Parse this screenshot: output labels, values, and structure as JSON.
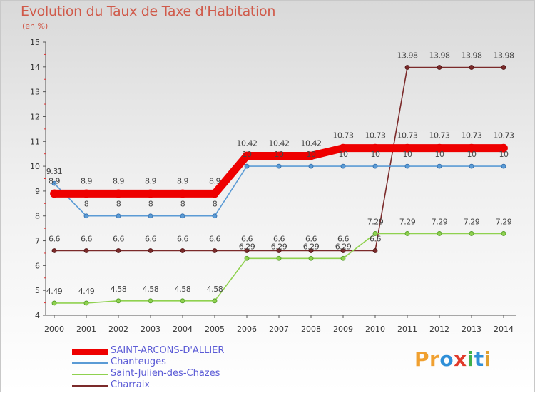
{
  "title": "Evolution du Taux de Taxe d'Habitation",
  "subtitle": "(en %)",
  "logo": {
    "text": "Proxiti",
    "letters": [
      "P",
      "r",
      "o",
      "x",
      "i",
      "t",
      "i"
    ],
    "colors": [
      "#f0a030",
      "#f0a030",
      "#2f8fd8",
      "#e03a2a",
      "#3fb04a",
      "#2f8fd8",
      "#e0a030"
    ]
  },
  "chart_data": {
    "type": "line",
    "title": "Evolution du Taux de Taxe d'Habitation",
    "ylabel": "(en %)",
    "xlabel": "",
    "categories": [
      "2000",
      "2001",
      "2002",
      "2003",
      "2004",
      "2005",
      "2006",
      "2007",
      "2008",
      "2009",
      "2010",
      "2011",
      "2012",
      "2013",
      "2014"
    ],
    "ylim": [
      4,
      15
    ],
    "yticks": [
      4,
      5,
      6,
      7,
      8,
      9,
      10,
      11,
      12,
      13,
      14,
      15
    ],
    "series": [
      {
        "name": "SAINT-ARCONS-D'ALLIER",
        "color": "#ee0000",
        "values": [
          8.9,
          8.9,
          8.9,
          8.9,
          8.9,
          8.9,
          10.42,
          10.42,
          10.42,
          10.73,
          10.73,
          10.73,
          10.73,
          10.73,
          10.73
        ],
        "labels": [
          "8.9",
          "8.9",
          "8.9",
          "8.9",
          "8.9",
          "8.9",
          "10.42",
          "10.42",
          "10.42",
          "10.73",
          "10.73",
          "10.73",
          "10.73",
          "10.73",
          "10.73"
        ]
      },
      {
        "name": "Chanteuges",
        "color": "#5b9bd5",
        "values": [
          9.31,
          8,
          8,
          8,
          8,
          8,
          10,
          10,
          10,
          10,
          10,
          10,
          10,
          10,
          10
        ],
        "labels": [
          "9.31",
          "8",
          "8",
          "8",
          "8",
          "8",
          "10",
          "10",
          "10",
          "10",
          "10",
          "10",
          "10",
          "10",
          "10"
        ]
      },
      {
        "name": "Saint-Julien-des-Chazes",
        "color": "#8fd14f",
        "values": [
          4.49,
          4.49,
          4.58,
          4.58,
          4.58,
          4.58,
          6.29,
          6.29,
          6.29,
          6.29,
          7.29,
          7.29,
          7.29,
          7.29,
          7.29
        ],
        "labels": [
          "4.49",
          "4.49",
          "4.58",
          "4.58",
          "4.58",
          "4.58",
          "6.29",
          "6.29",
          "6.29",
          "6.29",
          "7.29",
          "7.29",
          "7.29",
          "7.29",
          "7.29"
        ]
      },
      {
        "name": "Charraix",
        "color": "#7b2a2a",
        "values": [
          6.6,
          6.6,
          6.6,
          6.6,
          6.6,
          6.6,
          6.6,
          6.6,
          6.6,
          6.6,
          6.6,
          13.98,
          13.98,
          13.98,
          13.98
        ],
        "labels": [
          "6.6",
          "6.6",
          "6.6",
          "6.6",
          "6.6",
          "6.6",
          "6.6",
          "6.6",
          "6.6",
          "6.6",
          "6.6",
          "13.98",
          "13.98",
          "13.98",
          "13.98"
        ]
      }
    ]
  }
}
